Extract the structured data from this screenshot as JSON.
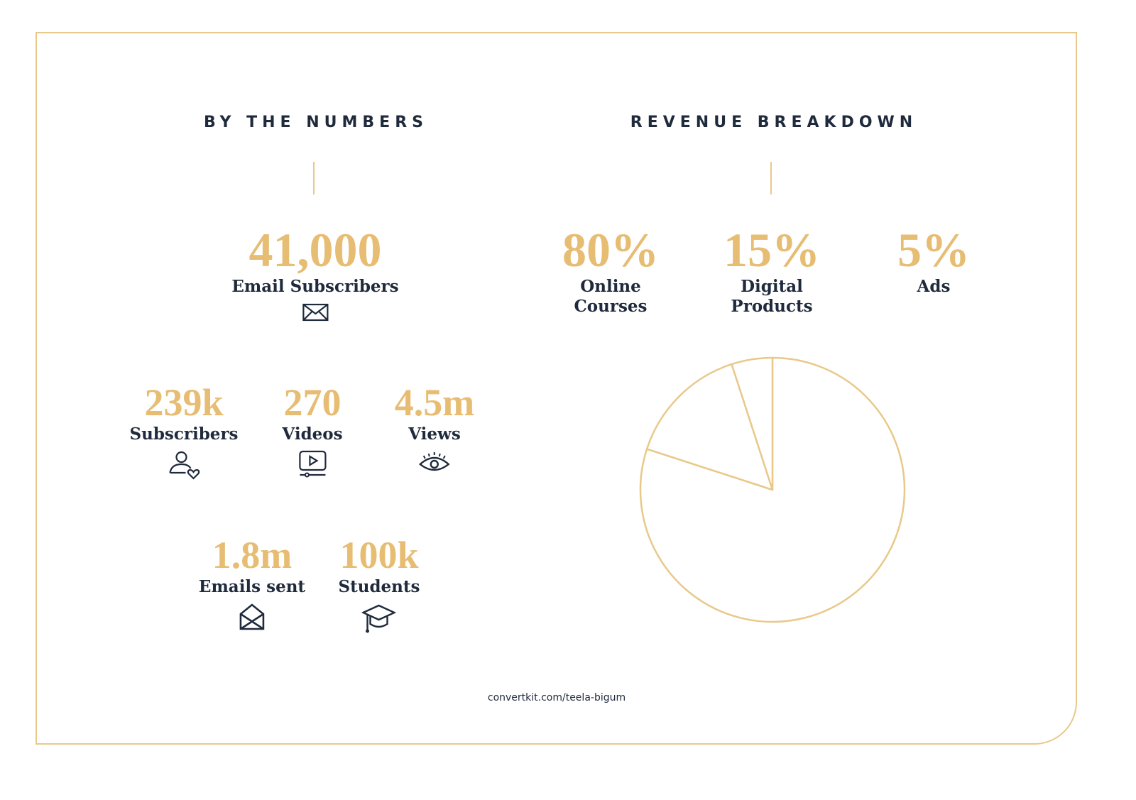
{
  "left": {
    "heading": "BY THE NUMBERS",
    "hero": {
      "value": "41,000",
      "label": "Email Subscribers",
      "icon": "envelope-icon"
    },
    "stats": [
      {
        "value": "239k",
        "label": "Subscribers",
        "icon": "user-heart-icon"
      },
      {
        "value": "270",
        "label": "Videos",
        "icon": "video-play-icon"
      },
      {
        "value": "4.5m",
        "label": "Views",
        "icon": "eye-icon"
      },
      {
        "value": "1.8m",
        "label": "Emails sent",
        "icon": "open-envelope-icon"
      },
      {
        "value": "100k",
        "label": "Students",
        "icon": "graduation-cap-icon"
      }
    ]
  },
  "right": {
    "heading": "REVENUE BREAKDOWN",
    "items": [
      {
        "value": "80%",
        "label_line1": "Online",
        "label_line2": "Courses"
      },
      {
        "value": "15%",
        "label_line1": "Digital",
        "label_line2": "Products"
      },
      {
        "value": "5%",
        "label_line1": "Ads",
        "label_line2": ""
      }
    ]
  },
  "chart_data": {
    "type": "pie",
    "title": "REVENUE BREAKDOWN",
    "categories": [
      "Online Courses",
      "Digital Products",
      "Ads"
    ],
    "values": [
      80,
      15,
      5
    ],
    "stroke_color": "#e8c98a",
    "fill_color": "#ffffff"
  },
  "footer": {
    "url": "convertkit.com/teela-bigum"
  },
  "colors": {
    "accent": "#e6bd72",
    "text": "#1f2a3c",
    "border": "#e8c98a"
  }
}
